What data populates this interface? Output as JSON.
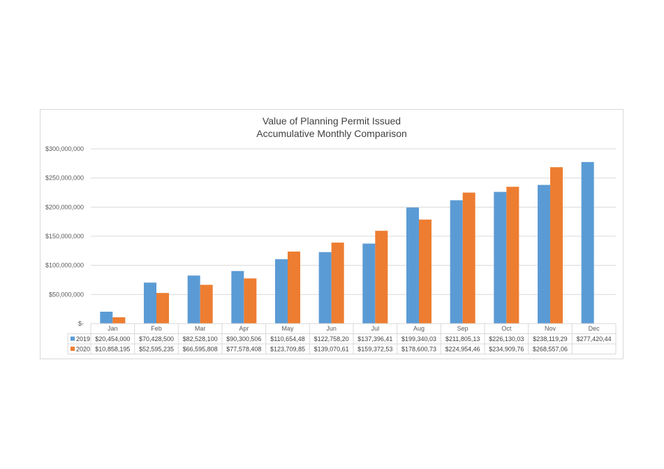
{
  "chart_data": {
    "type": "bar",
    "title": "Value of Planning Permit Issued",
    "subtitle": "Accumulative Monthly Comparison",
    "xlabel": "",
    "ylabel": "",
    "ylim": [
      0,
      300000000
    ],
    "ytick_labels": [
      "$-",
      "$50,000,000",
      "$100,000,000",
      "$150,000,000",
      "$200,000,000",
      "$250,000,000",
      "$300,000,000"
    ],
    "ytick_values": [
      0,
      50000000,
      100000000,
      150000000,
      200000000,
      250000000,
      300000000
    ],
    "grid": true,
    "legend": "data-table",
    "categories": [
      "Jan",
      "Feb",
      "Mar",
      "Apr",
      "May",
      "Jun",
      "Jul",
      "Aug",
      "Sep",
      "Oct",
      "Nov",
      "Dec"
    ],
    "series": [
      {
        "name": "2019",
        "color": "#5b9bd5",
        "values": [
          20454000,
          70428500,
          82528100,
          90300506,
          110654480,
          122758200,
          137396410,
          199340030,
          211805130,
          226130030,
          238119290,
          277420440
        ],
        "table_labels": [
          "$20,454,000",
          "$70,428,500",
          "$82,528,100",
          "$90,300,506",
          "$110,654,48",
          "$122,758,20",
          "$137,396,41",
          "$199,340,03",
          "$211,805,13",
          "$226,130,03",
          "$238,119,29",
          "$277,420,44"
        ]
      },
      {
        "name": "2020",
        "color": "#ed7d31",
        "values": [
          10858195,
          52595235,
          66595808,
          77578408,
          123709850,
          139070610,
          159372530,
          178600730,
          224954460,
          234909760,
          268557060,
          null
        ],
        "table_labels": [
          "$10,858,195",
          "$52,595,235",
          "$66,595,808",
          "$77,578,408",
          "$123,709,85",
          "$139,070,61",
          "$159,372,53",
          "$178,600,73",
          "$224,954,46",
          "$234,909,76",
          "$268,557,06",
          ""
        ]
      }
    ]
  }
}
